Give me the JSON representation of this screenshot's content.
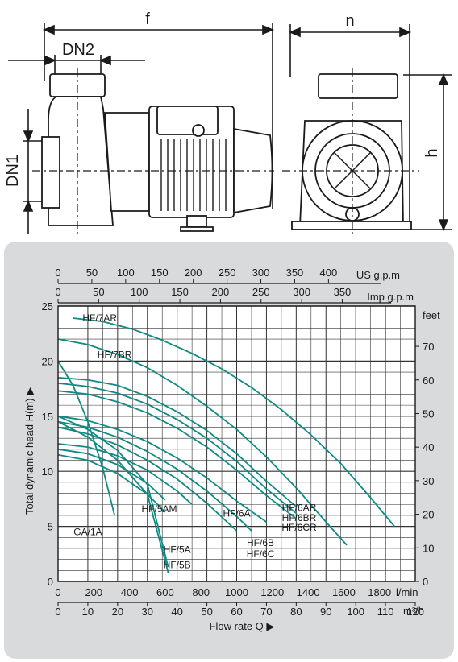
{
  "drawing": {
    "dimension_labels": {
      "f": "f",
      "n": "n",
      "dn2": "DN2",
      "dn1": "DN1",
      "h": "h"
    }
  },
  "chart_data": {
    "type": "line",
    "axes": {
      "us_gpm": {
        "label": "US g.p.m",
        "ticks": [
          "0",
          "50",
          "100",
          "150",
          "200",
          "250",
          "300",
          "350",
          "400"
        ]
      },
      "imp_gpm": {
        "label": "Imp g.p.m",
        "ticks": [
          "0",
          "50",
          "100",
          "150",
          "200",
          "250",
          "300",
          "350"
        ]
      },
      "lmin": {
        "label": "l/min",
        "ticks": [
          "0",
          "200",
          "400",
          "600",
          "800",
          "1000",
          "1200",
          "1400",
          "1600",
          "1800"
        ],
        "range": [
          0,
          2000
        ]
      },
      "m3h": {
        "label": "m³/h",
        "ticks": [
          "0",
          "10",
          "20",
          "30",
          "40",
          "50",
          "60",
          "70",
          "80",
          "90",
          "100",
          "110",
          "120"
        ],
        "range": [
          0,
          120
        ]
      },
      "head_m": {
        "label": "Total dynamic head H(m) ▶",
        "ticks": [
          "0",
          "5",
          "10",
          "15",
          "20",
          "25"
        ],
        "range": [
          0,
          25
        ]
      },
      "head_ft": {
        "label": "feet",
        "ticks": [
          "0",
          "10",
          "20",
          "30",
          "40",
          "50",
          "60",
          "70"
        ],
        "range": [
          0,
          82
        ]
      },
      "flow_label": "Flow  rate Q ▶"
    },
    "grid": true,
    "series_units": {
      "x": "m3/h",
      "y": "m"
    },
    "series": [
      {
        "name": "HF/7AR",
        "x": [
          5,
          15,
          25,
          35,
          45,
          55,
          65,
          75,
          85,
          95,
          105,
          113
        ],
        "y": [
          23.9,
          23.6,
          22.9,
          21.9,
          20.7,
          19.3,
          17.6,
          15.6,
          13.3,
          10.7,
          7.6,
          5.0
        ]
      },
      {
        "name": "HF/7BR",
        "x": [
          0,
          10,
          20,
          30,
          40,
          50,
          60,
          70,
          80,
          90,
          97
        ],
        "y": [
          22.0,
          21.5,
          20.6,
          19.4,
          17.8,
          15.9,
          13.8,
          11.3,
          8.5,
          5.4,
          3.3
        ]
      },
      {
        "name": "HF/6AR",
        "x": [
          0,
          10,
          20,
          30,
          40,
          50,
          60,
          70,
          80
        ],
        "y": [
          18.5,
          18.3,
          17.8,
          16.8,
          15.4,
          13.7,
          11.6,
          9.1,
          6.8
        ]
      },
      {
        "name": "HF/6BR",
        "x": [
          0,
          10,
          20,
          30,
          40,
          50,
          60,
          70,
          80
        ],
        "y": [
          18.0,
          17.7,
          17.1,
          16.1,
          14.7,
          13.0,
          10.9,
          8.4,
          6.2
        ]
      },
      {
        "name": "HF/6CR",
        "x": [
          0,
          10,
          20,
          30,
          40,
          50,
          60,
          70,
          80
        ],
        "y": [
          17.3,
          17.0,
          16.3,
          15.3,
          13.9,
          12.2,
          10.1,
          7.8,
          5.7
        ]
      },
      {
        "name": "HF/6A",
        "x": [
          0,
          10,
          20,
          30,
          40,
          50,
          60,
          70
        ],
        "y": [
          15.0,
          14.6,
          13.8,
          12.7,
          11.2,
          9.4,
          7.3,
          5.4
        ]
      },
      {
        "name": "HF/6B",
        "x": [
          0,
          10,
          20,
          30,
          40,
          50,
          60,
          65
        ],
        "y": [
          14.5,
          14.0,
          13.1,
          11.8,
          10.2,
          8.2,
          5.9,
          4.6
        ]
      },
      {
        "name": "HF/6C",
        "x": [
          0,
          10,
          20,
          30,
          40,
          50,
          60
        ],
        "y": [
          14.0,
          13.4,
          12.4,
          11.0,
          9.3,
          7.1,
          4.6
        ]
      },
      {
        "name": "HF/5AM",
        "x": [
          0,
          10,
          20,
          30,
          40,
          45
        ],
        "y": [
          12.5,
          12.2,
          11.4,
          10.1,
          8.2,
          7.0
        ]
      },
      {
        "name": "HF/5A",
        "x": [
          0,
          10,
          20,
          30,
          36
        ],
        "y": [
          12.0,
          11.6,
          10.6,
          8.9,
          7.4
        ]
      },
      {
        "name": "HF/5B",
        "x": [
          0,
          10,
          20,
          30,
          36
        ],
        "y": [
          11.5,
          11.0,
          9.8,
          7.9,
          6.3
        ]
      },
      {
        "name": "GA/1A",
        "x": [
          0,
          5,
          10,
          15,
          19
        ],
        "y": [
          20.0,
          17.8,
          14.5,
          10.3,
          6.0
        ]
      },
      {
        "name": "",
        "x": [
          0,
          10,
          20,
          30,
          37
        ],
        "y": [
          15.0,
          13.8,
          11.9,
          8.8,
          1.3
        ]
      },
      {
        "name": "",
        "x": [
          0,
          10,
          20,
          30,
          37
        ],
        "y": [
          14.5,
          13.1,
          11.0,
          7.9,
          0.8
        ]
      }
    ],
    "curve_labels": [
      "HF/7AR",
      "HF/7BR",
      "HF/6AR",
      "HF/6BR",
      "HF/6CR",
      "HF/6A",
      "HF/6B",
      "HF/6C",
      "HF/5AM",
      "HF/5A",
      "HF/5B",
      "GA/1A"
    ],
    "colors": {
      "curve": "#0e8a84",
      "grid": "#333333",
      "panel": "#d9dadb",
      "plot_bg": "#ffffff"
    }
  }
}
